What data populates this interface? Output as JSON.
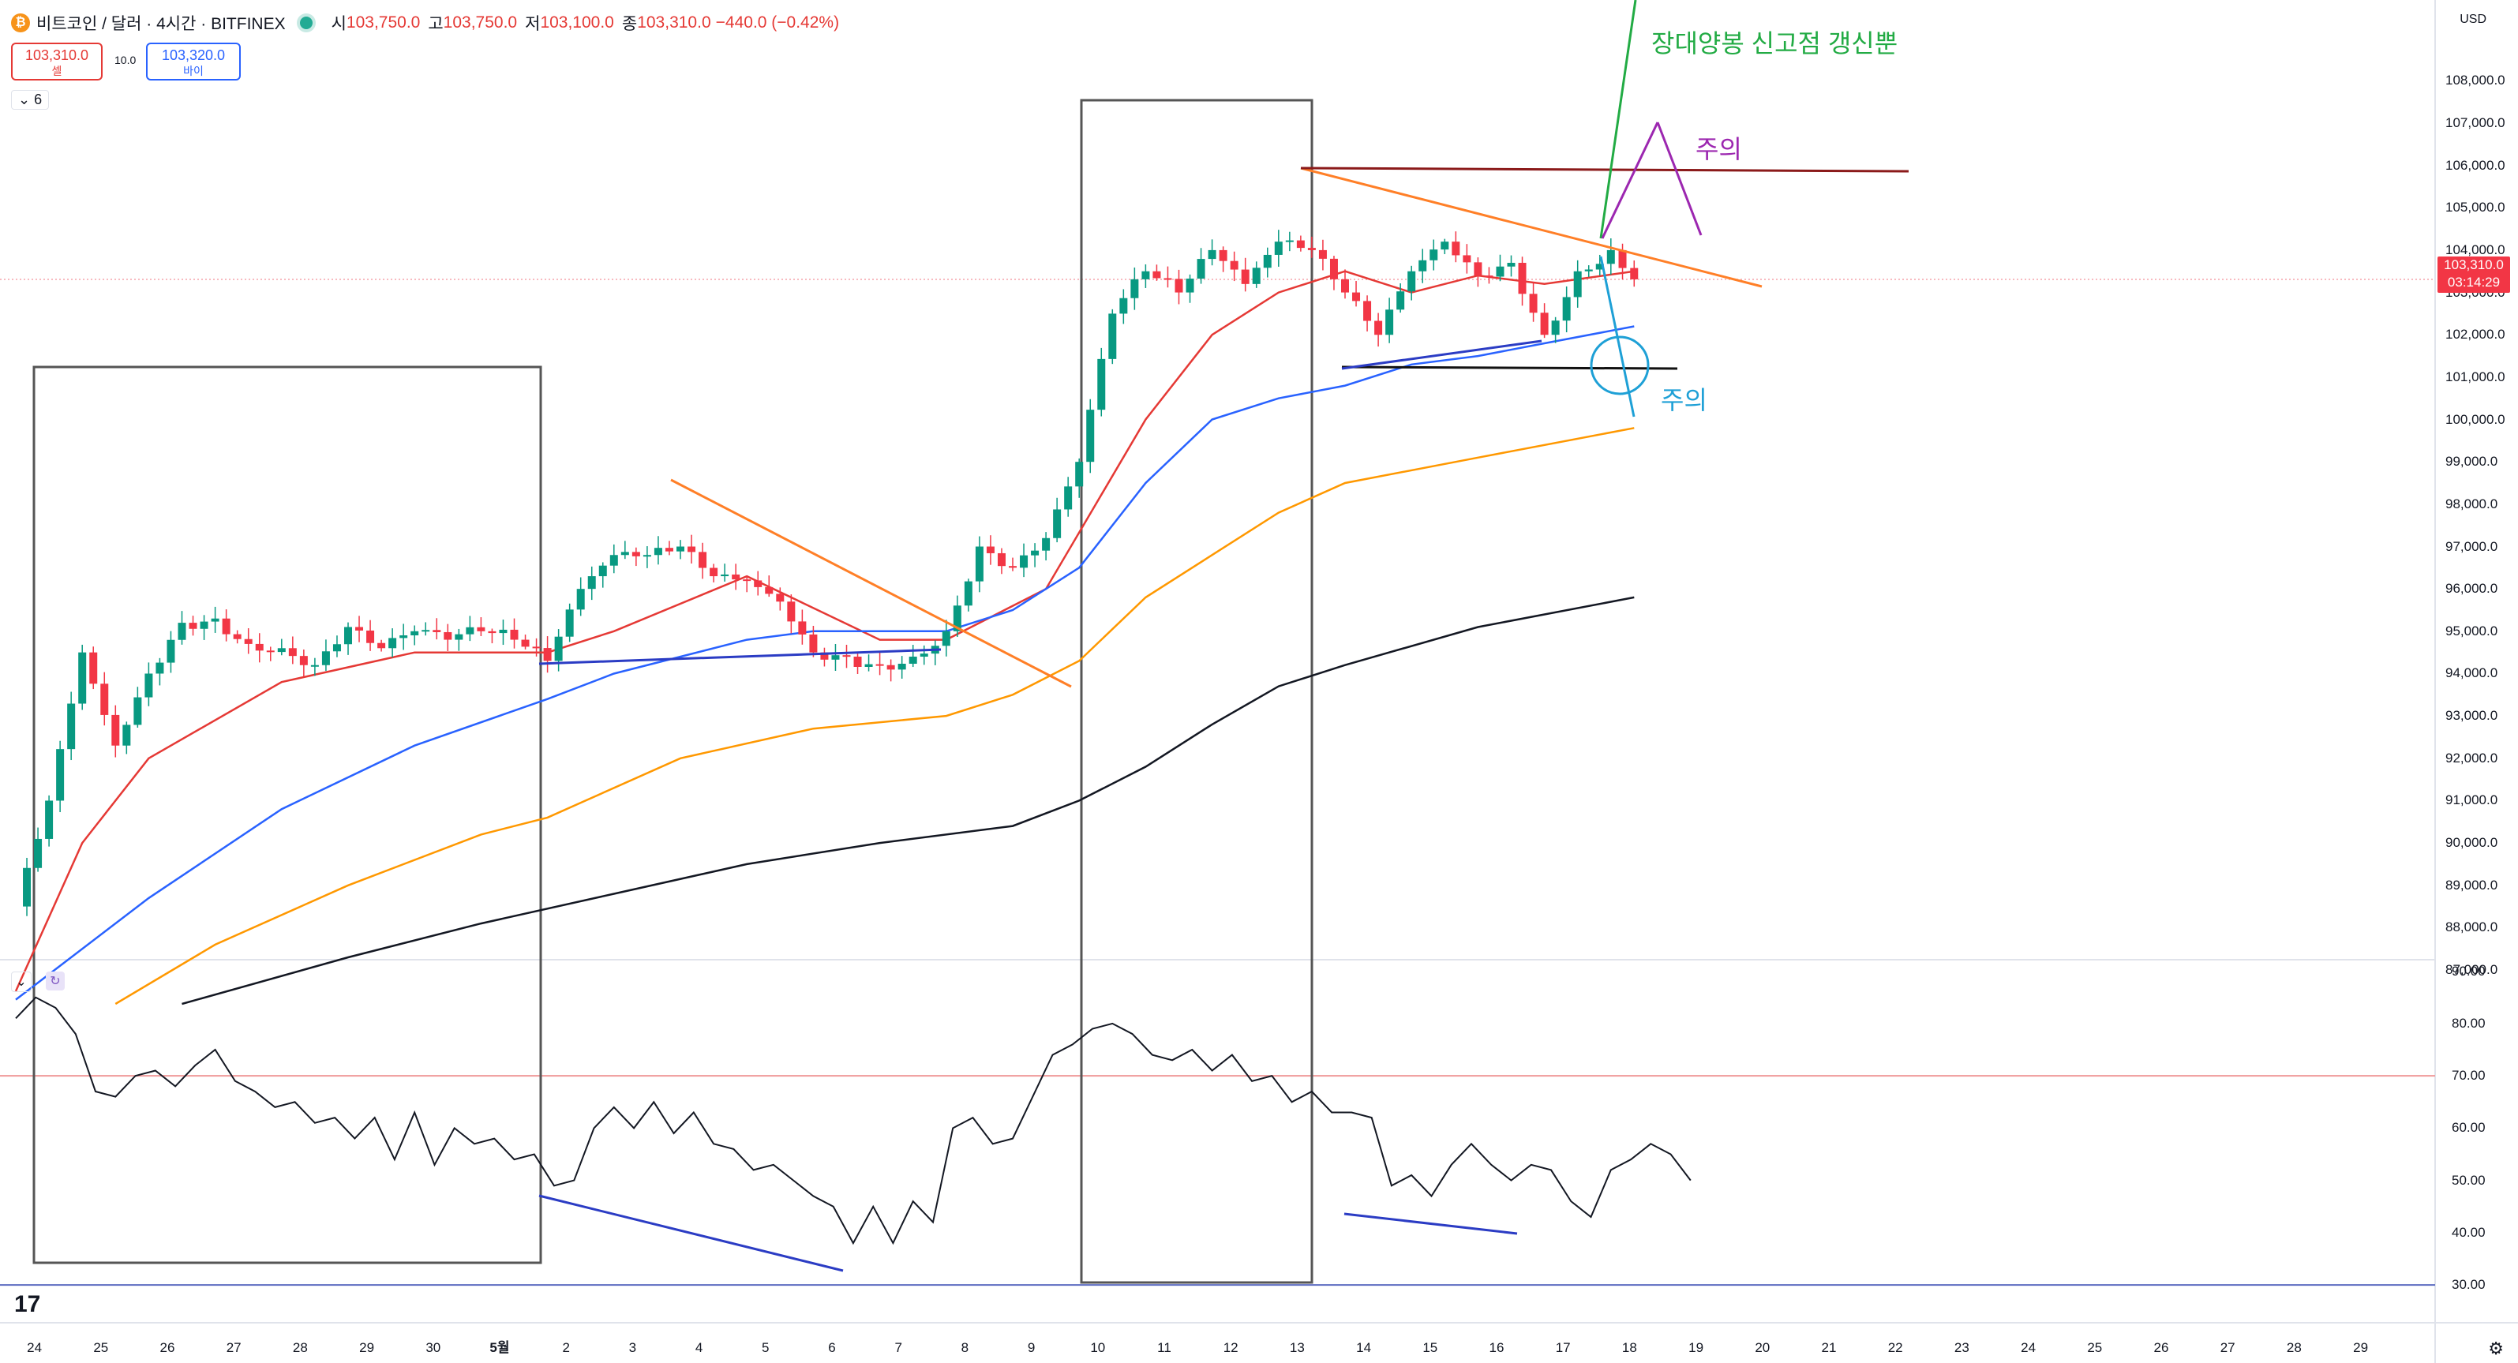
{
  "header": {
    "symbol": "비트코인 / 달러 · 4시간 · BITFINEX",
    "open_label": "시",
    "open": "103,750.0",
    "high_label": "고",
    "high": "103,750.0",
    "low_label": "저",
    "low": "103,100.0",
    "close_label": "종",
    "close": "103,310.0",
    "change": "−440.0 (−0.42%)"
  },
  "trade": {
    "sell_price": "103,310.0",
    "sell_label": "셀",
    "spread": "10.0",
    "buy_price": "103,320.0",
    "buy_label": "바이"
  },
  "indicator_count": "6",
  "currency": "USD",
  "last_price": {
    "price": "103,310.0",
    "countdown": "03:14:29",
    "color": "#f23645"
  },
  "annotations": {
    "new_high": "장대양봉 신고점 갱신뿐",
    "caution_top": "주의",
    "caution_bottom": "주의"
  },
  "colors": {
    "up": "#089981",
    "down": "#f23645",
    "ma20": "#e53935",
    "ma50": "#2962ff",
    "ma100": "#ff9800",
    "ma200": "#131722",
    "rsi": "#131722"
  },
  "chart_data": [
    {
      "type": "candlestick",
      "title": "",
      "timeframe": "4H",
      "x_ticks": [
        "23",
        "24",
        "25",
        "26",
        "27",
        "28",
        "29",
        "30",
        "5월",
        "2",
        "3",
        "4",
        "5",
        "6",
        "7",
        "8",
        "9",
        "10",
        "11",
        "12",
        "13",
        "14",
        "15",
        "16",
        "17",
        "18",
        "19",
        "20",
        "21",
        "22",
        "23",
        "24",
        "25",
        "26",
        "27",
        "28",
        "29"
      ],
      "y_ticks": [
        "108,000.0",
        "107,000.0",
        "106,000.0",
        "105,000.0",
        "104,000.0",
        "103,000.0",
        "102,000.0",
        "101,000.0",
        "100,000.0",
        "99,000.0",
        "98,000.0",
        "97,000.0",
        "96,000.0",
        "95,000.0",
        "94,000.0",
        "93,000.0",
        "92,000.0",
        "91,000.0",
        "90,000.0",
        "89,000.0",
        "88,000.0",
        "87,000.0"
      ],
      "ylim": [
        86200,
        108900
      ],
      "close_series": [
        {
          "day": 0,
          "close": 88500
        },
        {
          "day": 0.5,
          "close": 91000
        },
        {
          "day": 1,
          "close": 94500
        },
        {
          "day": 1.5,
          "close": 92300
        },
        {
          "day": 2,
          "close": 94000
        },
        {
          "day": 2.5,
          "close": 95200
        },
        {
          "day": 3,
          "close": 95300
        },
        {
          "day": 3.5,
          "close": 94700
        },
        {
          "day": 4,
          "close": 94600
        },
        {
          "day": 4.5,
          "close": 94200
        },
        {
          "day": 5,
          "close": 95100
        },
        {
          "day": 5.5,
          "close": 94600
        },
        {
          "day": 6,
          "close": 95000
        },
        {
          "day": 6.5,
          "close": 94800
        },
        {
          "day": 7,
          "close": 95000
        },
        {
          "day": 7.5,
          "close": 94800
        },
        {
          "day": 8,
          "close": 94300
        },
        {
          "day": 8.5,
          "close": 96000
        },
        {
          "day": 9,
          "close": 96800
        },
        {
          "day": 9.5,
          "close": 96800
        },
        {
          "day": 10,
          "close": 97000
        },
        {
          "day": 10.5,
          "close": 96300
        },
        {
          "day": 11,
          "close": 96200
        },
        {
          "day": 11.5,
          "close": 95700
        },
        {
          "day": 12,
          "close": 94500
        },
        {
          "day": 12.5,
          "close": 94400
        },
        {
          "day": 13,
          "close": 94200
        },
        {
          "day": 13.5,
          "close": 94400
        },
        {
          "day": 14,
          "close": 95000
        },
        {
          "day": 14.5,
          "close": 97000
        },
        {
          "day": 15,
          "close": 96500
        },
        {
          "day": 15.5,
          "close": 97200
        },
        {
          "day": 16,
          "close": 99000
        },
        {
          "day": 16.5,
          "close": 102500
        },
        {
          "day": 17,
          "close": 103500
        },
        {
          "day": 17.5,
          "close": 103000
        },
        {
          "day": 18,
          "close": 104000
        },
        {
          "day": 18.5,
          "close": 103200
        },
        {
          "day": 19,
          "close": 104200
        },
        {
          "day": 19.5,
          "close": 104000
        },
        {
          "day": 20,
          "close": 103000
        },
        {
          "day": 20.5,
          "close": 102000
        },
        {
          "day": 21,
          "close": 103500
        },
        {
          "day": 21.5,
          "close": 104200
        },
        {
          "day": 22,
          "close": 103400
        },
        {
          "day": 22.5,
          "close": 103700
        },
        {
          "day": 23,
          "close": 102000
        },
        {
          "day": 23.5,
          "close": 103500
        },
        {
          "day": 24,
          "close": 104000
        },
        {
          "day": 24.35,
          "close": 103310
        }
      ],
      "moving_averages": [
        {
          "name": "MA20",
          "color": "#e53935",
          "points": [
            [
              0,
              86500
            ],
            [
              1,
              90000
            ],
            [
              2,
              92000
            ],
            [
              4,
              93800
            ],
            [
              6,
              94500
            ],
            [
              8,
              94500
            ],
            [
              9,
              95000
            ],
            [
              11,
              96300
            ],
            [
              13,
              94800
            ],
            [
              14,
              94800
            ],
            [
              15.5,
              96000
            ],
            [
              17,
              100000
            ],
            [
              18,
              102000
            ],
            [
              19,
              103000
            ],
            [
              20,
              103500
            ],
            [
              21,
              103000
            ],
            [
              22,
              103400
            ],
            [
              23,
              103200
            ],
            [
              24.35,
              103500
            ]
          ]
        },
        {
          "name": "MA50",
          "color": "#2962ff",
          "points": [
            [
              0,
              86300
            ],
            [
              2,
              88700
            ],
            [
              4,
              90800
            ],
            [
              6,
              92300
            ],
            [
              8,
              93400
            ],
            [
              9,
              94000
            ],
            [
              11,
              94800
            ],
            [
              12,
              95000
            ],
            [
              14,
              95000
            ],
            [
              15,
              95500
            ],
            [
              16,
              96500
            ],
            [
              17,
              98500
            ],
            [
              18,
              100000
            ],
            [
              19,
              100500
            ],
            [
              20,
              100800
            ],
            [
              21,
              101300
            ],
            [
              22,
              101500
            ],
            [
              23,
              101800
            ],
            [
              24.35,
              102200
            ]
          ]
        },
        {
          "name": "MA100",
          "color": "#ff9800",
          "points": [
            [
              1.5,
              86200
            ],
            [
              3,
              87600
            ],
            [
              5,
              89000
            ],
            [
              7,
              90200
            ],
            [
              8,
              90600
            ],
            [
              10,
              92000
            ],
            [
              12,
              92700
            ],
            [
              14,
              93000
            ],
            [
              15,
              93500
            ],
            [
              16,
              94300
            ],
            [
              17,
              95800
            ],
            [
              18,
              96800
            ],
            [
              19,
              97800
            ],
            [
              20,
              98500
            ],
            [
              22,
              99100
            ],
            [
              24.35,
              99800
            ]
          ]
        },
        {
          "name": "MA200",
          "color": "#131722",
          "points": [
            [
              2.5,
              86200
            ],
            [
              5,
              87300
            ],
            [
              7,
              88100
            ],
            [
              9,
              88800
            ],
            [
              11,
              89500
            ],
            [
              13,
              90000
            ],
            [
              15,
              90400
            ],
            [
              16,
              91000
            ],
            [
              17,
              91800
            ],
            [
              18,
              92800
            ],
            [
              19,
              93700
            ],
            [
              20,
              94200
            ],
            [
              22,
              95100
            ],
            [
              24.35,
              95800
            ]
          ]
        }
      ]
    },
    {
      "type": "line",
      "title": "",
      "name": "RSI",
      "y_ticks": [
        "90.00",
        "80.00",
        "70.00",
        "60.00",
        "50.00",
        "40.00",
        "30.00"
      ],
      "ylim": [
        27,
        91
      ],
      "reference_lines": [
        70,
        30
      ],
      "points": [
        [
          0,
          81
        ],
        [
          0.3,
          85
        ],
        [
          0.6,
          83
        ],
        [
          0.9,
          78
        ],
        [
          1.2,
          67
        ],
        [
          1.5,
          66
        ],
        [
          1.8,
          70
        ],
        [
          2.1,
          71
        ],
        [
          2.4,
          68
        ],
        [
          2.7,
          72
        ],
        [
          3.0,
          75
        ],
        [
          3.3,
          69
        ],
        [
          3.6,
          67
        ],
        [
          3.9,
          64
        ],
        [
          4.2,
          65
        ],
        [
          4.5,
          61
        ],
        [
          4.8,
          62
        ],
        [
          5.1,
          58
        ],
        [
          5.4,
          62
        ],
        [
          5.7,
          54
        ],
        [
          6.0,
          63
        ],
        [
          6.3,
          53
        ],
        [
          6.6,
          60
        ],
        [
          6.9,
          57
        ],
        [
          7.2,
          58
        ],
        [
          7.5,
          54
        ],
        [
          7.8,
          55
        ],
        [
          8.1,
          49
        ],
        [
          8.4,
          50
        ],
        [
          8.7,
          60
        ],
        [
          9.0,
          64
        ],
        [
          9.3,
          60
        ],
        [
          9.6,
          65
        ],
        [
          9.9,
          59
        ],
        [
          10.2,
          63
        ],
        [
          10.5,
          57
        ],
        [
          10.8,
          56
        ],
        [
          11.1,
          52
        ],
        [
          11.4,
          53
        ],
        [
          11.7,
          50
        ],
        [
          12.0,
          47
        ],
        [
          12.3,
          45
        ],
        [
          12.6,
          38
        ],
        [
          12.9,
          45
        ],
        [
          13.2,
          38
        ],
        [
          13.5,
          46
        ],
        [
          13.8,
          42
        ],
        [
          14.1,
          60
        ],
        [
          14.4,
          62
        ],
        [
          14.7,
          57
        ],
        [
          15.0,
          58
        ],
        [
          15.3,
          66
        ],
        [
          15.6,
          74
        ],
        [
          15.9,
          76
        ],
        [
          16.2,
          79
        ],
        [
          16.5,
          80
        ],
        [
          16.8,
          78
        ],
        [
          17.1,
          74
        ],
        [
          17.4,
          73
        ],
        [
          17.7,
          75
        ],
        [
          18.0,
          71
        ],
        [
          18.3,
          74
        ],
        [
          18.6,
          69
        ],
        [
          18.9,
          70
        ],
        [
          19.2,
          65
        ],
        [
          19.5,
          67
        ],
        [
          19.8,
          63
        ],
        [
          20.1,
          63
        ],
        [
          20.4,
          62
        ],
        [
          20.7,
          49
        ],
        [
          21.0,
          51
        ],
        [
          21.3,
          47
        ],
        [
          21.6,
          53
        ],
        [
          21.9,
          57
        ],
        [
          22.2,
          53
        ],
        [
          22.5,
          50
        ],
        [
          22.8,
          53
        ],
        [
          23.1,
          52
        ],
        [
          23.4,
          46
        ],
        [
          23.7,
          43
        ],
        [
          24.0,
          52
        ],
        [
          24.3,
          54
        ],
        [
          24.6,
          57
        ],
        [
          24.9,
          55
        ],
        [
          25.2,
          50
        ]
      ]
    }
  ]
}
